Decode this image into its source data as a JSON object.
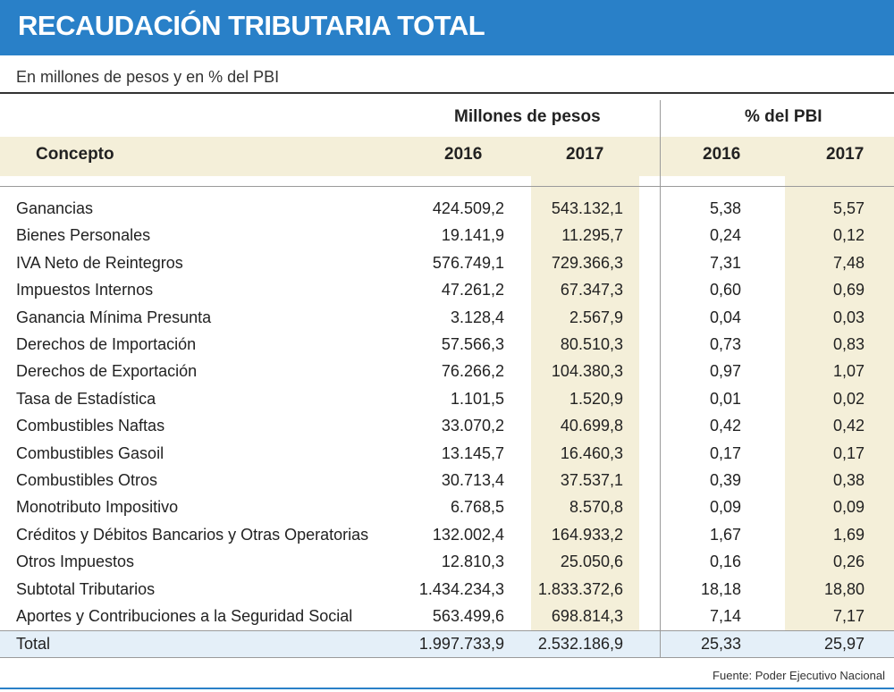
{
  "title": "RECAUDACIÓN TRIBUTARIA TOTAL",
  "subtitle": "En millones de pesos y en % del PBI",
  "headers": {
    "group_millones": "Millones de pesos",
    "group_pbi": "% del PBI",
    "concepto": "Concepto",
    "y2016_millones": "2016",
    "y2017_millones": "2017",
    "y2016_pbi": "2016",
    "y2017_pbi": "2017"
  },
  "rows": [
    {
      "concepto": "Ganancias",
      "m2016": "424.509,2",
      "m2017": "543.132,1",
      "p2016": "5,38",
      "p2017": "5,57"
    },
    {
      "concepto": "Bienes Personales",
      "m2016": "19.141,9",
      "m2017": "11.295,7",
      "p2016": "0,24",
      "p2017": "0,12"
    },
    {
      "concepto": "IVA Neto de Reintegros",
      "m2016": "576.749,1",
      "m2017": "729.366,3",
      "p2016": "7,31",
      "p2017": "7,48"
    },
    {
      "concepto": "Impuestos Internos",
      "m2016": "47.261,2",
      "m2017": "67.347,3",
      "p2016": "0,60",
      "p2017": "0,69"
    },
    {
      "concepto": "Ganancia Mínima Presunta",
      "m2016": "3.128,4",
      "m2017": "2.567,9",
      "p2016": "0,04",
      "p2017": "0,03"
    },
    {
      "concepto": "Derechos de Importación",
      "m2016": "57.566,3",
      "m2017": "80.510,3",
      "p2016": "0,73",
      "p2017": "0,83"
    },
    {
      "concepto": "Derechos de Exportación",
      "m2016": "76.266,2",
      "m2017": "104.380,3",
      "p2016": "0,97",
      "p2017": "1,07"
    },
    {
      "concepto": "Tasa de Estadística",
      "m2016": "1.101,5",
      "m2017": "1.520,9",
      "p2016": "0,01",
      "p2017": "0,02"
    },
    {
      "concepto": "Combustibles Naftas",
      "m2016": "33.070,2",
      "m2017": "40.699,8",
      "p2016": "0,42",
      "p2017": "0,42"
    },
    {
      "concepto": "Combustibles Gasoil",
      "m2016": "13.145,7",
      "m2017": "16.460,3",
      "p2016": "0,17",
      "p2017": "0,17"
    },
    {
      "concepto": "Combustibles Otros",
      "m2016": "30.713,4",
      "m2017": "37.537,1",
      "p2016": "0,39",
      "p2017": "0,38"
    },
    {
      "concepto": "Monotributo Impositivo",
      "m2016": "6.768,5",
      "m2017": "8.570,8",
      "p2016": "0,09",
      "p2017": "0,09"
    },
    {
      "concepto": "Créditos y Débitos Bancarios y Otras Operatorias",
      "m2016": "132.002,4",
      "m2017": "164.933,2",
      "p2016": "1,67",
      "p2017": "1,69"
    },
    {
      "concepto": "Otros Impuestos",
      "m2016": "12.810,3",
      "m2017": "25.050,6",
      "p2016": "0,16",
      "p2017": "0,26"
    },
    {
      "concepto": "Subtotal Tributarios",
      "m2016": "1.434.234,3",
      "m2017": "1.833.372,6",
      "p2016": "18,18",
      "p2017": "18,80"
    },
    {
      "concepto": "Aportes y Contribuciones a la Seguridad Social",
      "m2016": "563.499,6",
      "m2017": "698.814,3",
      "p2016": "7,14",
      "p2017": "7,17"
    }
  ],
  "total": {
    "concepto": "Total",
    "m2016": "1.997.733,9",
    "m2017": "2.532.186,9",
    "p2016": "25,33",
    "p2017": "25,97"
  },
  "source": "Fuente: Poder Ejecutivo Nacional",
  "colors": {
    "title_bg": "#2980c8",
    "band": "#f4efd9",
    "total_bg": "#e4eff8"
  }
}
